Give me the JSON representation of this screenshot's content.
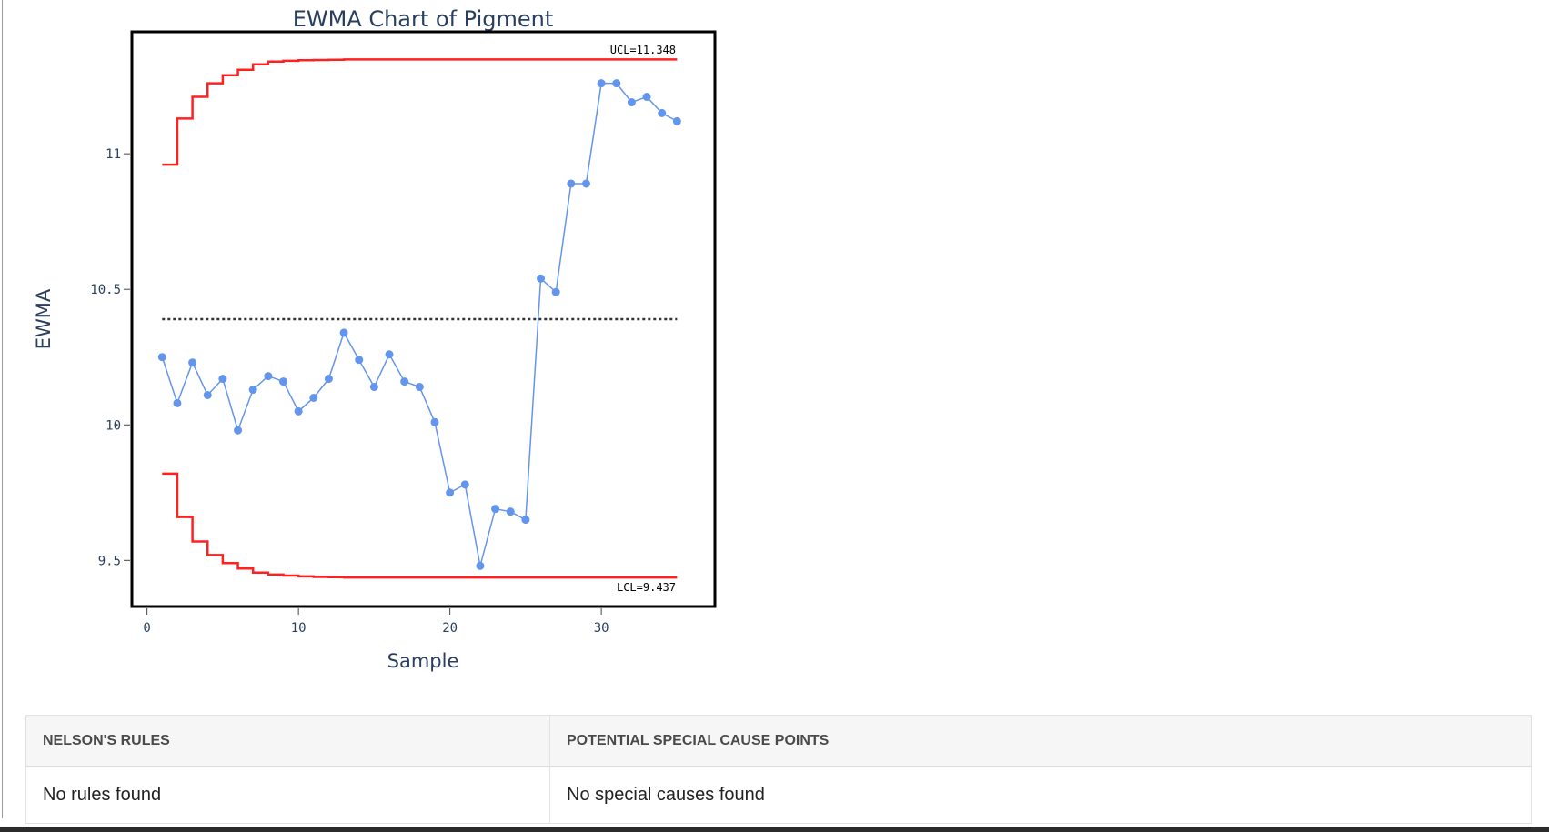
{
  "chart_data": {
    "type": "line",
    "title": "EWMA Chart of Pigment",
    "xlabel": "Sample",
    "ylabel": "EWMA",
    "xlim": [
      -1,
      37.5
    ],
    "ylim": [
      9.33,
      11.45
    ],
    "x_ticks": [
      0,
      10,
      20,
      30
    ],
    "y_ticks": [
      9.5,
      10,
      10.5,
      11
    ],
    "y_tick_labels": [
      "9.5",
      "10",
      "10.5",
      "11"
    ],
    "grid": false,
    "center_line": 10.39,
    "ucl_label": "UCL=11.348",
    "lcl_label": "LCL=9.437",
    "series": [
      {
        "x": [
          1,
          2,
          3,
          4,
          5,
          6,
          7,
          8,
          9,
          10,
          11,
          12,
          13,
          14,
          15,
          16,
          17,
          18,
          19,
          20,
          21,
          22,
          23,
          24,
          25,
          26,
          27,
          28,
          29,
          30,
          31,
          32,
          33,
          34,
          35
        ],
        "values": [
          10.25,
          10.08,
          10.23,
          10.11,
          10.17,
          9.98,
          10.13,
          10.18,
          10.16,
          10.05,
          10.1,
          10.17,
          10.34,
          10.24,
          10.14,
          10.26,
          10.16,
          10.14,
          10.01,
          9.75,
          9.78,
          9.48,
          9.69,
          9.68,
          9.65,
          10.54,
          10.49,
          10.89,
          10.89,
          11.26,
          11.26,
          11.19,
          11.21,
          11.15,
          11.12
        ],
        "color": "#6495ed"
      }
    ],
    "ucl_steps": [
      10.96,
      11.13,
      11.21,
      11.26,
      11.29,
      11.31,
      11.33,
      11.34,
      11.343,
      11.345,
      11.346,
      11.347,
      11.348,
      11.348,
      11.348,
      11.348,
      11.348,
      11.348,
      11.348,
      11.348,
      11.348,
      11.348,
      11.348,
      11.348,
      11.348,
      11.348,
      11.348,
      11.348,
      11.348,
      11.348,
      11.348,
      11.348,
      11.348,
      11.348,
      11.348
    ],
    "lcl_steps": [
      9.82,
      9.66,
      9.57,
      9.52,
      9.49,
      9.47,
      9.455,
      9.448,
      9.444,
      9.441,
      9.439,
      9.438,
      9.437,
      9.437,
      9.437,
      9.437,
      9.437,
      9.437,
      9.437,
      9.437,
      9.437,
      9.437,
      9.437,
      9.437,
      9.437,
      9.437,
      9.437,
      9.437,
      9.437,
      9.437,
      9.437,
      9.437,
      9.437,
      9.437,
      9.437
    ],
    "limit_color": "#ff2020",
    "center_color": "#333333"
  },
  "table": {
    "headers": [
      "NELSON'S RULES",
      "POTENTIAL SPECIAL CAUSE POINTS"
    ],
    "row": [
      "No rules found",
      "No special causes found"
    ]
  }
}
